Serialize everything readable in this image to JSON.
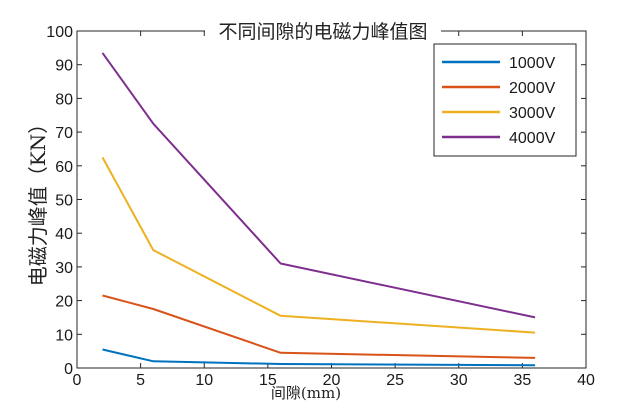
{
  "chart_data": {
    "type": "line",
    "title": "不同间隙的电磁力峰值图",
    "xlabel": "间隙(mm)",
    "ylabel": "电磁力峰值（KN）",
    "xlim": [
      0,
      40
    ],
    "ylim": [
      0,
      100
    ],
    "xticks": [
      0,
      5,
      10,
      15,
      20,
      25,
      30,
      35,
      40
    ],
    "yticks": [
      0,
      10,
      20,
      30,
      40,
      50,
      60,
      70,
      80,
      90,
      100
    ],
    "grid": false,
    "legend_position": "top-right",
    "x": [
      2,
      6,
      16,
      36
    ],
    "series": [
      {
        "name": "1000V",
        "color": "#0072BD",
        "values": [
          5.5,
          2.0,
          1.2,
          0.8
        ]
      },
      {
        "name": "2000V",
        "color": "#D95319",
        "values": [
          21.5,
          17.5,
          4.5,
          3.0
        ]
      },
      {
        "name": "3000V",
        "color": "#EDB120",
        "values": [
          62.5,
          35.0,
          15.5,
          10.5
        ]
      },
      {
        "name": "4000V",
        "color": "#7E2F8E",
        "values": [
          93.5,
          72.5,
          31.0,
          15.0
        ]
      }
    ]
  }
}
